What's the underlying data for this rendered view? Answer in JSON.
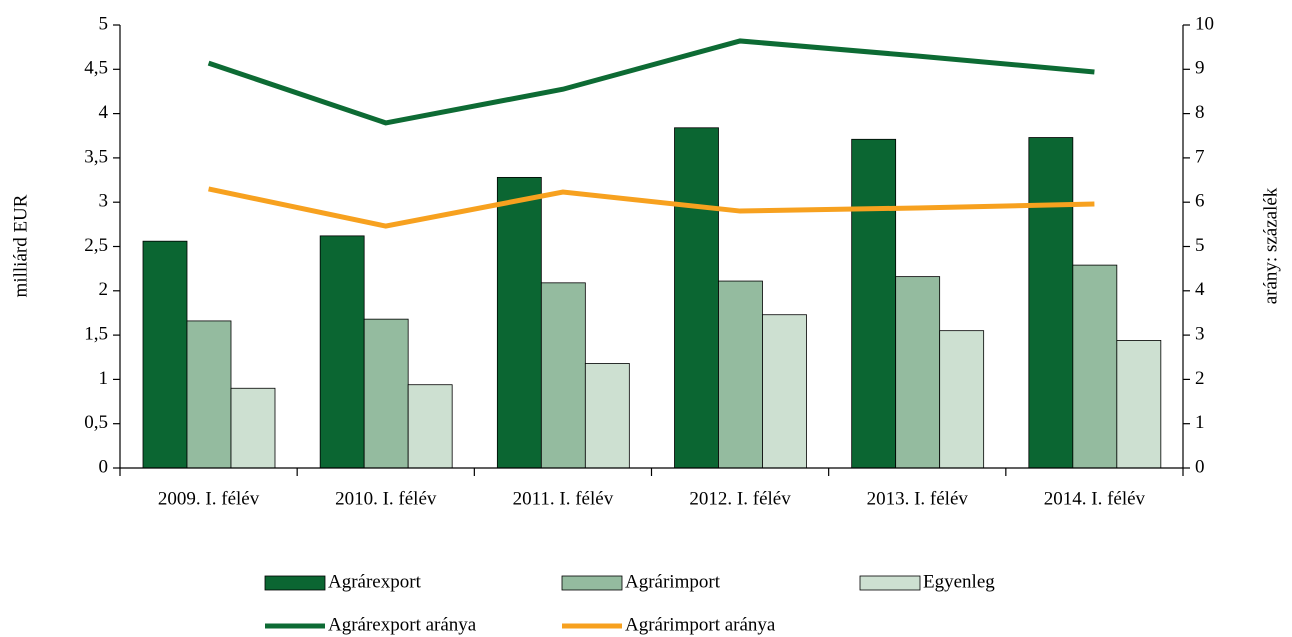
{
  "chart_data": {
    "type": "bar",
    "y_label": "milliárd EUR",
    "y2_label": "arány: százalék",
    "categories": [
      "2009. I. félév",
      "2010. I. félév",
      "2011. I. félév",
      "2012. I. félév",
      "2013. I. félév",
      "2014. I. félév"
    ],
    "series": [
      {
        "name": "Agrárexport",
        "color": "#0b6632",
        "values": [
          2.56,
          2.62,
          3.28,
          3.84,
          3.71,
          3.73
        ]
      },
      {
        "name": "Agrárimport",
        "color": "#94bb9f",
        "values": [
          1.66,
          1.68,
          2.09,
          2.11,
          2.16,
          2.29
        ]
      },
      {
        "name": "Egyenleg",
        "color": "#cde0d1",
        "values": [
          0.9,
          0.94,
          1.18,
          1.73,
          1.55,
          1.44
        ]
      },
      {
        "name": "Agrárexport aránya",
        "type": "line",
        "axis": "y2",
        "color": "#0d6b34",
        "values": [
          9.14,
          7.79,
          8.55,
          9.64,
          9.3,
          8.94
        ]
      },
      {
        "name": "Agrárimport aránya",
        "type": "line",
        "axis": "y2",
        "color": "#f7a11f",
        "values": [
          6.3,
          5.46,
          6.23,
          5.8,
          5.87,
          5.96
        ]
      }
    ],
    "ylim": [
      0,
      5
    ],
    "yticks": [
      0,
      {
        "value": 0.5,
        "label": "0,5"
      },
      1,
      {
        "value": 1.5,
        "label": "1,5"
      },
      2,
      {
        "value": 2.5,
        "label": "2,5"
      },
      3,
      {
        "value": 3.5,
        "label": "3,5"
      },
      4,
      {
        "value": 4.5,
        "label": "4,5"
      },
      5
    ],
    "y2lim": [
      0,
      10
    ],
    "y2ticks": [
      0,
      1,
      2,
      3,
      4,
      5,
      6,
      7,
      8,
      9,
      10
    ],
    "legend": "bottom"
  }
}
